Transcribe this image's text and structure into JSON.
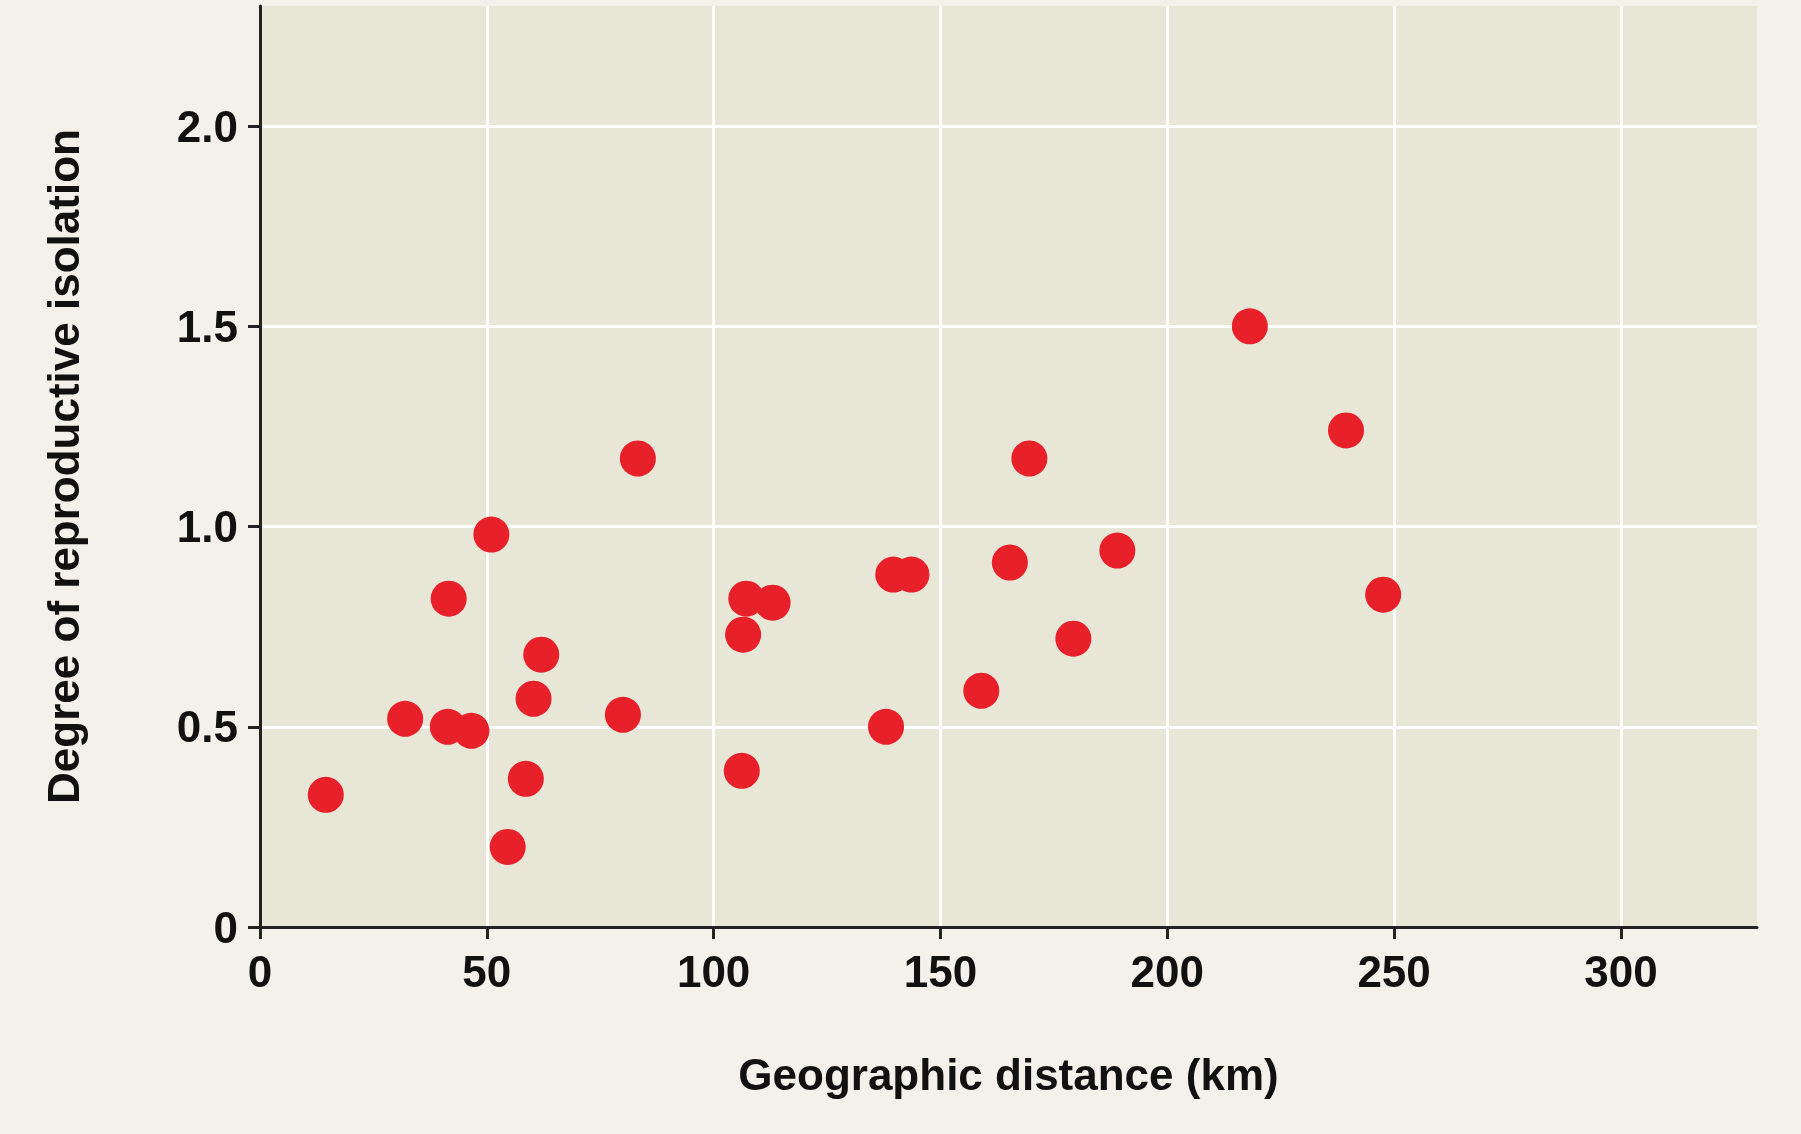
{
  "chart_data": {
    "type": "scatter",
    "xlabel": "Geographic distance (km)",
    "ylabel": "Degree of reproductive isolation",
    "x": [
      14.5,
      32,
      41.4,
      41.6,
      46.6,
      51,
      54.6,
      58.6,
      60.3,
      62,
      80,
      83.3,
      106.2,
      106.5,
      107.2,
      113,
      138,
      139.6,
      143.6,
      159,
      165.3,
      169.6,
      179.3,
      189,
      218.2,
      239.4,
      247.6
    ],
    "values": [
      0.33,
      0.52,
      0.5,
      0.82,
      0.49,
      0.98,
      0.2,
      0.37,
      0.57,
      0.68,
      0.53,
      1.17,
      0.39,
      0.73,
      0.82,
      0.81,
      0.5,
      0.88,
      0.88,
      0.59,
      0.91,
      1.17,
      0.72,
      0.94,
      1.5,
      1.24,
      0.83
    ],
    "color": "#e8202a",
    "marker": "circle",
    "grid": true,
    "xlim": [
      0,
      330
    ],
    "xticks": [
      0,
      50,
      100,
      150,
      200,
      250,
      300
    ],
    "ylim": [
      0,
      2.3
    ],
    "yticks": [
      0,
      0.5,
      {
        "value": 1,
        "label": "1.0"
      },
      1.5,
      {
        "value": 2,
        "label": "2.0"
      }
    ]
  }
}
